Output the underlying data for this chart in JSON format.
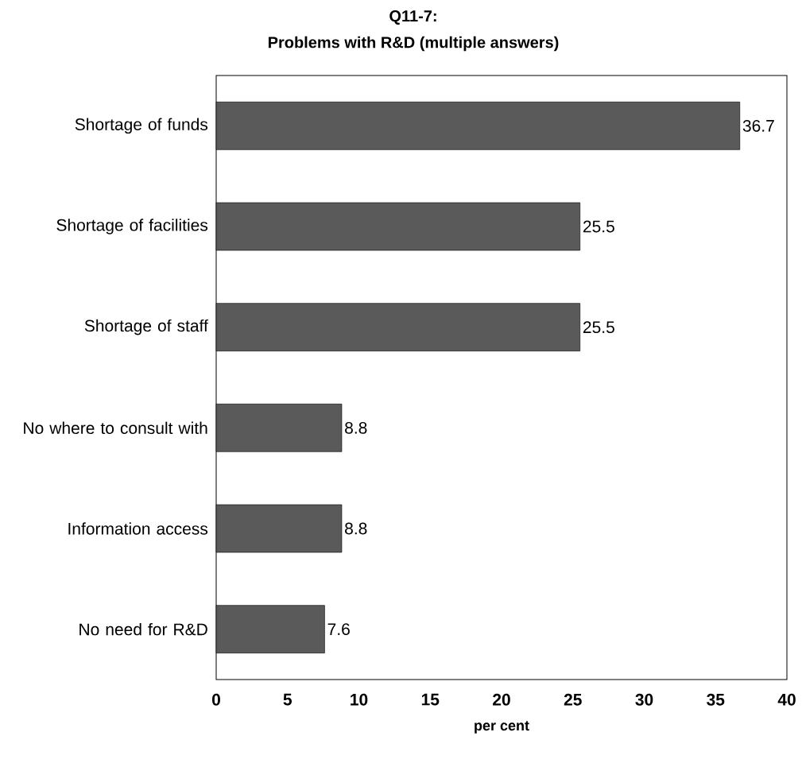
{
  "chart_data": {
    "type": "bar",
    "orientation": "horizontal",
    "title": "Q11-7:",
    "subtitle": "Problems with R&D (multiple answers)",
    "xlabel": "per cent",
    "categories": [
      "Shortage of funds",
      "Shortage of facilities",
      "Shortage of staff",
      "No where to consult with",
      "Information access",
      "No need for R&D"
    ],
    "values": [
      36.7,
      25.5,
      25.5,
      8.8,
      8.8,
      7.6
    ],
    "color": "#5a5a5a",
    "data_labels": true,
    "xlim": [
      0,
      40
    ],
    "xticks": [
      0,
      5,
      10,
      15,
      20,
      25,
      30,
      35,
      40
    ],
    "grid": false
  }
}
